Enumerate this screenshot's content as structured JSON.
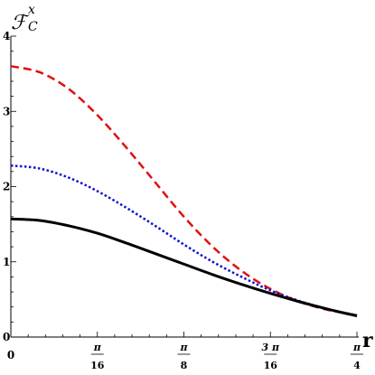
{
  "chart_data": {
    "type": "line",
    "xlabel": "r",
    "ylabel": {
      "main": "ℱ",
      "superscript": "x",
      "subscript": "C"
    },
    "xlim": [
      0,
      0.7853981634
    ],
    "ylim": [
      0,
      4
    ],
    "x_ticks": [
      {
        "value": 0,
        "label": "0",
        "numerator": "",
        "denominator": ""
      },
      {
        "value": 0.19634954,
        "label": "",
        "numerator": "π",
        "denominator": "16"
      },
      {
        "value": 0.39269908,
        "label": "",
        "numerator": "π",
        "denominator": "8"
      },
      {
        "value": 0.58904862,
        "label": "",
        "numerator": "3 π",
        "denominator": "16"
      },
      {
        "value": 0.78539816,
        "label": "",
        "numerator": "π",
        "denominator": "4"
      }
    ],
    "y_ticks": [
      {
        "value": 0,
        "label": "0"
      },
      {
        "value": 1,
        "label": "1"
      },
      {
        "value": 2,
        "label": "2"
      },
      {
        "value": 3,
        "label": "3"
      },
      {
        "value": 4,
        "label": "4"
      }
    ],
    "grid": false,
    "series": [
      {
        "color": "#e01010",
        "style": "dashed",
        "x": [
          0,
          0.06545,
          0.1309,
          0.19635,
          0.2618,
          0.32725,
          0.3927,
          0.45815,
          0.5236,
          0.58905,
          0.6545,
          0.71995,
          0.7854
        ],
        "y": [
          3.6,
          3.52,
          3.3,
          2.95,
          2.52,
          2.06,
          1.6,
          1.2,
          0.88,
          0.64,
          0.47,
          0.36,
          0.29
        ]
      },
      {
        "color": "#1010d0",
        "style": "dotted",
        "x": [
          0,
          0.06545,
          0.1309,
          0.19635,
          0.2618,
          0.32725,
          0.3927,
          0.45815,
          0.5236,
          0.58905,
          0.6545,
          0.71995,
          0.7854
        ],
        "y": [
          2.28,
          2.24,
          2.12,
          1.94,
          1.72,
          1.48,
          1.23,
          1.0,
          0.8,
          0.62,
          0.48,
          0.37,
          0.29
        ]
      },
      {
        "color": "#000000",
        "style": "solid",
        "x": [
          0,
          0.06545,
          0.1309,
          0.19635,
          0.2618,
          0.32725,
          0.3927,
          0.45815,
          0.5236,
          0.58905,
          0.6545,
          0.71995,
          0.7854
        ],
        "y": [
          1.57,
          1.55,
          1.48,
          1.38,
          1.25,
          1.11,
          0.97,
          0.83,
          0.7,
          0.58,
          0.47,
          0.37,
          0.28
        ]
      }
    ]
  }
}
